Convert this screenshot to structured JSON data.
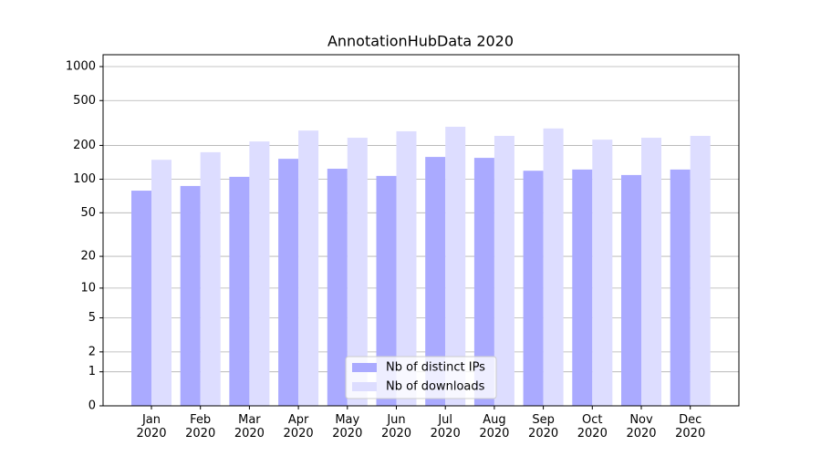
{
  "chart_data": {
    "type": "bar",
    "title": "AnnotationHubData 2020",
    "categories": [
      "Jan\n2020",
      "Feb\n2020",
      "Mar\n2020",
      "Apr\n2020",
      "May\n2020",
      "Jun\n2020",
      "Jul\n2020",
      "Aug\n2020",
      "Sep\n2020",
      "Oct\n2020",
      "Nov\n2020",
      "Dec\n2020"
    ],
    "series": [
      {
        "name": "Nb of distinct IPs",
        "color": "#aaaaff",
        "values": [
          79,
          87,
          105,
          152,
          124,
          107,
          158,
          155,
          119,
          122,
          109,
          122
        ]
      },
      {
        "name": "Nb of downloads",
        "color": "#ddddff",
        "values": [
          149,
          174,
          217,
          271,
          234,
          267,
          293,
          243,
          283,
          225,
          234,
          243
        ]
      }
    ],
    "yscale": "log1p",
    "ylim": [
      0,
      1000
    ],
    "yticks": [
      0,
      1,
      2,
      5,
      10,
      20,
      50,
      100,
      200,
      500,
      1000
    ],
    "grid": true,
    "legend": "lower center"
  }
}
